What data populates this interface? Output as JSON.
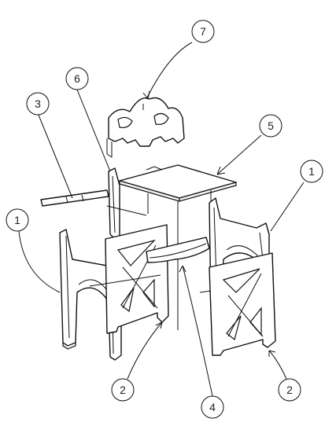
{
  "callouts": [
    {
      "id": "c1-left",
      "label": "1"
    },
    {
      "id": "c1-right",
      "label": "1"
    },
    {
      "id": "c2-left",
      "label": "2"
    },
    {
      "id": "c2-right",
      "label": "2"
    },
    {
      "id": "c3",
      "label": "3"
    },
    {
      "id": "c4",
      "label": "4"
    },
    {
      "id": "c5",
      "label": "5"
    },
    {
      "id": "c6",
      "label": "6"
    },
    {
      "id": "c7",
      "label": "7"
    }
  ],
  "colors": {
    "line": "#111111",
    "background": "#ffffff"
  }
}
